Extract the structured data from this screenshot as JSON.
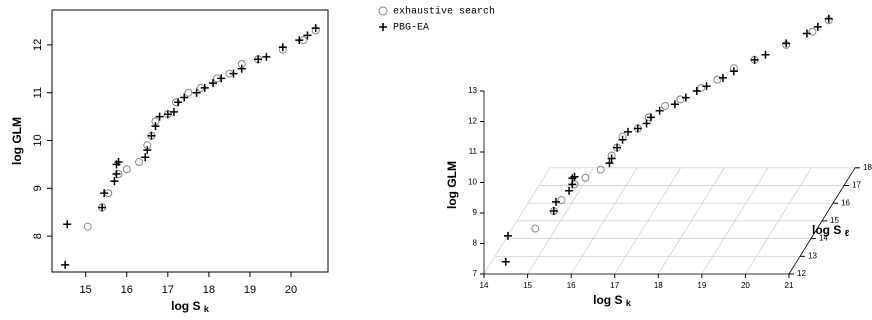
{
  "chart_data": [
    {
      "type": "scatter",
      "xlabel": "log S",
      "xlabel_subscript": "k",
      "ylabel": "log GLM",
      "xlim": [
        14.18,
        20.9
      ],
      "ylim": [
        7.25,
        12.73
      ],
      "xticks": [
        15,
        16,
        17,
        18,
        19,
        20
      ],
      "yticks": [
        8,
        9,
        10,
        11,
        12
      ],
      "series": [
        {
          "name": "exhaustive search",
          "marker": "circle",
          "color": "#888888",
          "x": [
            15.05,
            15.4,
            15.55,
            15.8,
            16.0,
            16.3,
            16.5,
            16.6,
            16.7,
            17.0,
            17.2,
            17.5,
            17.8,
            18.2,
            18.5,
            18.8,
            19.2,
            19.8,
            20.3,
            20.6
          ],
          "values": [
            8.2,
            8.6,
            8.9,
            9.3,
            9.4,
            9.55,
            9.9,
            10.1,
            10.4,
            10.55,
            10.8,
            11.0,
            11.1,
            11.3,
            11.4,
            11.6,
            11.7,
            11.9,
            12.1,
            12.3
          ]
        },
        {
          "name": "PBG-EA",
          "marker": "plus",
          "color": "#000000",
          "x": [
            14.5,
            14.55,
            15.4,
            15.45,
            15.7,
            15.75,
            15.75,
            15.8,
            16.45,
            16.5,
            16.6,
            16.7,
            16.8,
            17.0,
            17.15,
            17.25,
            17.4,
            17.7,
            17.9,
            18.1,
            18.3,
            18.6,
            18.8,
            19.2,
            19.4,
            19.8,
            20.2,
            20.4,
            20.6
          ],
          "values": [
            7.4,
            8.25,
            8.6,
            8.9,
            9.15,
            9.3,
            9.5,
            9.55,
            9.65,
            9.8,
            10.1,
            10.3,
            10.5,
            10.55,
            10.6,
            10.8,
            10.9,
            11.0,
            11.1,
            11.2,
            11.3,
            11.4,
            11.5,
            11.7,
            11.75,
            11.95,
            12.1,
            12.2,
            12.35
          ]
        }
      ]
    },
    {
      "type": "scatter3d",
      "xlabel": "log S",
      "xlabel_subscript": "k",
      "ylabel": "log S",
      "ylabel_subscript": "ℓ",
      "zlabel": "log GLM",
      "xlim": [
        14,
        21
      ],
      "ylim": [
        12,
        18
      ],
      "zlim": [
        7,
        13
      ],
      "xticks": [
        14,
        15,
        16,
        17,
        18,
        19,
        20,
        21
      ],
      "yticks": [
        12,
        13,
        14,
        15,
        16,
        17,
        18
      ],
      "zticks": [
        7,
        8,
        9,
        10,
        11,
        12,
        13
      ],
      "series": [
        {
          "marker": "circle",
          "color": "#888888",
          "x": [
            15.05,
            15.4,
            15.55,
            15.8,
            16.0,
            16.3,
            16.5,
            16.6,
            16.7,
            17.0,
            17.2,
            17.5,
            17.8,
            18.2,
            18.5,
            18.8,
            19.2,
            19.8,
            20.3,
            20.6
          ],
          "y": [
            12.5,
            12.8,
            12.9,
            13.1,
            13.3,
            13.5,
            13.7,
            13.8,
            13.9,
            14.1,
            14.3,
            14.6,
            14.8,
            15.1,
            15.4,
            15.7,
            16.0,
            16.5,
            16.9,
            17.2
          ],
          "z": [
            8.2,
            8.6,
            8.9,
            9.3,
            9.4,
            9.55,
            9.9,
            10.1,
            10.4,
            10.55,
            10.8,
            11.0,
            11.1,
            11.3,
            11.4,
            11.6,
            11.7,
            11.9,
            12.1,
            12.3
          ]
        },
        {
          "marker": "plus",
          "color": "#000000",
          "x": [
            14.5,
            14.55,
            15.4,
            15.45,
            15.7,
            15.75,
            15.75,
            15.8,
            16.45,
            16.5,
            16.6,
            16.7,
            16.8,
            17.0,
            17.15,
            17.25,
            17.4,
            17.7,
            17.9,
            18.1,
            18.3,
            18.6,
            18.8,
            19.2,
            19.4,
            19.8,
            20.2,
            20.4,
            20.6
          ],
          "y": [
            12.0,
            12.0,
            12.8,
            12.8,
            13.0,
            13.1,
            13.1,
            13.1,
            13.7,
            13.7,
            13.8,
            13.9,
            14.0,
            14.1,
            14.3,
            14.3,
            14.5,
            14.7,
            14.9,
            15.1,
            15.2,
            15.5,
            15.7,
            16.0,
            16.2,
            16.5,
            16.8,
            17.0,
            17.2
          ],
          "z": [
            7.4,
            8.25,
            8.6,
            8.9,
            9.15,
            9.3,
            9.5,
            9.55,
            9.65,
            9.8,
            10.1,
            10.3,
            10.5,
            10.55,
            10.6,
            10.8,
            10.9,
            11.0,
            11.1,
            11.2,
            11.3,
            11.4,
            11.5,
            11.7,
            11.75,
            11.95,
            12.1,
            12.2,
            12.35
          ]
        }
      ]
    }
  ]
}
